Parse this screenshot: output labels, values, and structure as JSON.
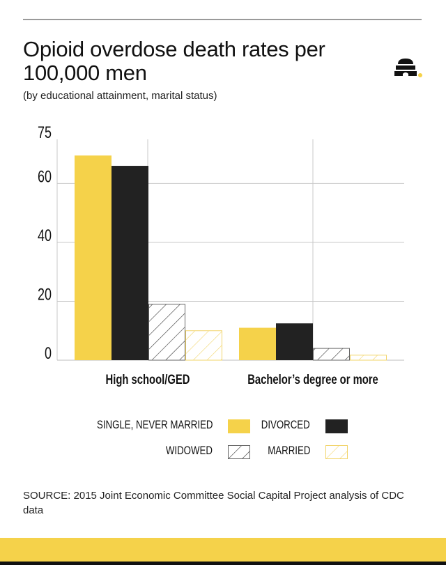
{
  "header": {
    "title": "Opioid overdose death rates per 100,000 men",
    "subtitle": "(by educational attainment, marital status)",
    "logo_icon": "beehive-logo-icon"
  },
  "colors": {
    "yellow": "#f5d24a",
    "black": "#222222",
    "grid": "#bdbdbd",
    "hatch_dark": "#333333",
    "hatch_yellow": "#f2d46a"
  },
  "chart_data": {
    "type": "bar",
    "title": "Opioid overdose death rates per 100,000 men",
    "subtitle": "(by educational attainment, marital status)",
    "xlabel": "",
    "ylabel": "",
    "categories": [
      "High school/GED",
      "Bachelor’s degree or more"
    ],
    "series": [
      {
        "name": "SINGLE, NEVER MARRIED",
        "style": "solid-yellow",
        "values": [
          69.5,
          11
        ]
      },
      {
        "name": "DIVORCED",
        "style": "solid-black",
        "values": [
          66,
          12.5
        ]
      },
      {
        "name": "WIDOWED",
        "style": "hatch-black",
        "values": [
          19,
          4
        ]
      },
      {
        "name": "MARRIED",
        "style": "hatch-yellow",
        "values": [
          10,
          1.7
        ]
      }
    ],
    "yticks": [
      0,
      20,
      40,
      60,
      75
    ],
    "ylim": [
      0,
      75
    ],
    "grid": true,
    "legend_position": "bottom"
  },
  "legend": {
    "items": [
      {
        "label": "SINGLE, NEVER MARRIED",
        "style": "solid-yellow"
      },
      {
        "label": "DIVORCED",
        "style": "solid-black"
      },
      {
        "label": "WIDOWED",
        "style": "hatch-black"
      },
      {
        "label": "MARRIED",
        "style": "hatch-yellow"
      }
    ]
  },
  "footer": {
    "source": "SOURCE: 2015 Joint Economic Committee Social Capital Project analysis of CDC data"
  }
}
